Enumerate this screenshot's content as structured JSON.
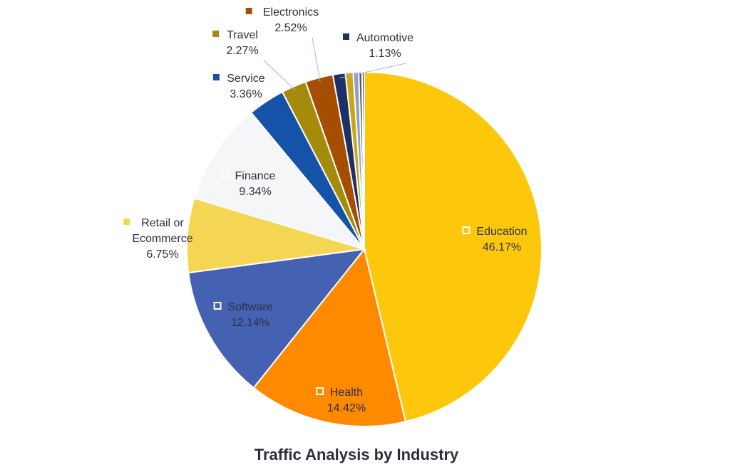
{
  "chart_data": {
    "type": "pie",
    "title": "Traffic Analysis by Industry",
    "slices": [
      {
        "label": "Education",
        "value": 46.17,
        "display": "46.17%",
        "color": "#FDC80C"
      },
      {
        "label": "Health",
        "value": 14.42,
        "display": "14.42%",
        "color": "#FF8A00"
      },
      {
        "label": "Software",
        "value": 12.14,
        "display": "12.14%",
        "color": "#4561B2"
      },
      {
        "label": "Retail or Ecommerce",
        "label_lines": [
          "Retail or",
          "Ecommerce"
        ],
        "value": 6.75,
        "display": "6.75%",
        "color": "#F5D654"
      },
      {
        "label": "Finance",
        "value": 9.34,
        "display": "9.34%",
        "color": "#F5F6F8"
      },
      {
        "label": "Service",
        "value": 3.36,
        "display": "3.36%",
        "color": "#1553A9"
      },
      {
        "label": "Travel",
        "value": 2.27,
        "display": "2.27%",
        "color": "#A68A0B"
      },
      {
        "label": "Electronics",
        "value": 2.52,
        "display": "2.52%",
        "color": "#A54D00"
      },
      {
        "label": "Automotive",
        "value": 1.13,
        "display": "1.13%",
        "color": "#1F3164"
      },
      {
        "label": "",
        "value": 0.7,
        "display": "",
        "color": "#C9A716"
      },
      {
        "label": "",
        "value": 0.5,
        "display": "",
        "color": "#8FA0C8"
      },
      {
        "label": "",
        "value": 0.3,
        "display": "",
        "color": "#5A5A5A"
      },
      {
        "label": "",
        "value": 0.2,
        "display": "",
        "color": "#1C2B4F"
      }
    ]
  }
}
